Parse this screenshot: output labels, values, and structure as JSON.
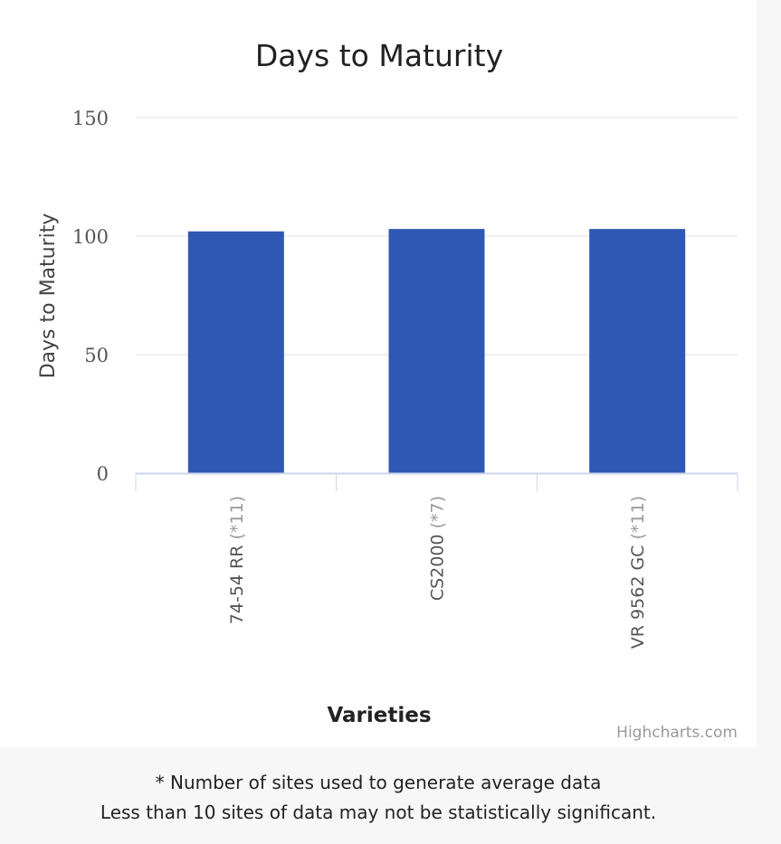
{
  "chart_data": {
    "type": "bar",
    "title": "Days to Maturity",
    "xlabel": "Varieties",
    "ylabel": "Days to Maturity",
    "ylim": [
      0,
      150
    ],
    "yticks": [
      0,
      50,
      100,
      150
    ],
    "grid": true,
    "categories": [
      {
        "name": "74-54 RR",
        "note": "(*11)"
      },
      {
        "name": "CS2000",
        "note": "(*7)"
      },
      {
        "name": "VR 9562 GC",
        "note": "(*11)"
      }
    ],
    "values": [
      102,
      103,
      103
    ],
    "colors": {
      "bar": "#2f58b4",
      "grid": "#e0e0e0",
      "axis": "#ccd6eb",
      "tick_label": "#555555",
      "note_label": "#999999"
    },
    "credits": "Highcharts.com"
  },
  "footnotes": [
    "* Number of sites used to generate average data",
    "Less than 10 sites of data may not be statistically significant."
  ]
}
